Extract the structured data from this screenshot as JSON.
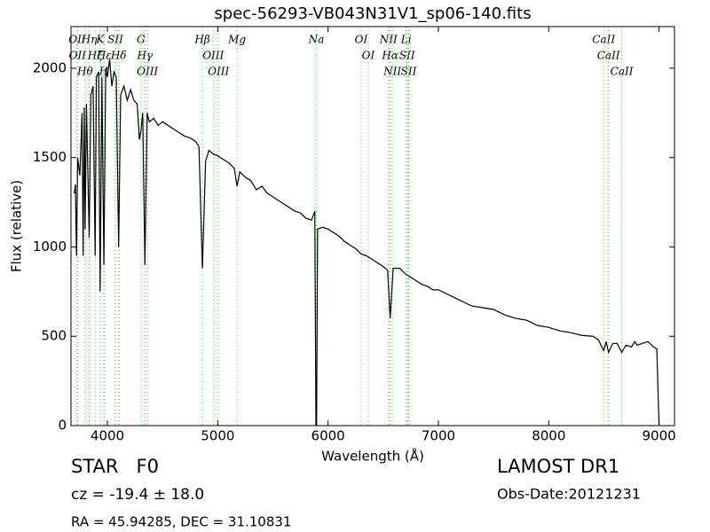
{
  "chart_data": {
    "type": "line",
    "title": "spec-56293-VB043N31V1_sp06-140.fits",
    "x_label": "Wavelength (Å)",
    "y_label": "Flux (relative)",
    "color": "#000000",
    "xlim": [
      3670,
      9140
    ],
    "ylim": [
      0,
      2233
    ],
    "xticks": [
      4000,
      5000,
      6000,
      7000,
      8000,
      9000
    ],
    "yticks": [
      0,
      500,
      1000,
      1500,
      2000
    ],
    "grid": false,
    "x": [
      3700,
      3710,
      3720,
      3730,
      3750,
      3770,
      3780,
      3790,
      3798,
      3810,
      3835,
      3850,
      3870,
      3889,
      3900,
      3920,
      3934,
      3950,
      3968,
      3985,
      4000,
      4020,
      4040,
      4060,
      4080,
      4102,
      4120,
      4150,
      4180,
      4210,
      4240,
      4270,
      4290,
      4304,
      4320,
      4340,
      4360,
      4380,
      4420,
      4460,
      4500,
      4550,
      4600,
      4650,
      4700,
      4750,
      4800,
      4830,
      4861,
      4890,
      4920,
      4960,
      5000,
      5050,
      5100,
      5150,
      5175,
      5200,
      5250,
      5300,
      5350,
      5400,
      5450,
      5500,
      5550,
      5600,
      5650,
      5700,
      5750,
      5800,
      5850,
      5880,
      5890,
      5896,
      5905,
      5950,
      6000,
      6050,
      6100,
      6150,
      6200,
      6250,
      6300,
      6350,
      6400,
      6450,
      6500,
      6540,
      6563,
      6590,
      6650,
      6700,
      6750,
      6800,
      6850,
      6900,
      6950,
      7000,
      7100,
      7200,
      7300,
      7400,
      7500,
      7600,
      7700,
      7800,
      7900,
      8000,
      8100,
      8200,
      8300,
      8400,
      8450,
      8498,
      8520,
      8542,
      8580,
      8620,
      8662,
      8700,
      8750,
      8780,
      8800,
      8850,
      8900,
      8950,
      8980,
      8990,
      9000
    ],
    "values": [
      1300,
      1350,
      950,
      1500,
      1400,
      1750,
      950,
      1780,
      1100,
      1800,
      1050,
      1850,
      1900,
      950,
      1950,
      1980,
      750,
      1950,
      900,
      2000,
      1950,
      2050,
      1900,
      1980,
      1950,
      1000,
      1850,
      1900,
      1820,
      1880,
      1820,
      1800,
      1600,
      1650,
      1750,
      900,
      1750,
      1700,
      1720,
      1680,
      1700,
      1680,
      1660,
      1640,
      1620,
      1610,
      1590,
      1560,
      880,
      1480,
      1540,
      1520,
      1510,
      1490,
      1470,
      1440,
      1340,
      1420,
      1390,
      1370,
      1320,
      1340,
      1300,
      1280,
      1260,
      1240,
      1220,
      1200,
      1190,
      1160,
      1150,
      1200,
      0,
      0,
      1100,
      1110,
      1100,
      1080,
      1060,
      1030,
      1010,
      990,
      960,
      950,
      930,
      910,
      890,
      870,
      600,
      880,
      880,
      850,
      830,
      810,
      790,
      780,
      760,
      760,
      730,
      700,
      670,
      660,
      650,
      620,
      600,
      590,
      560,
      550,
      530,
      520,
      505,
      500,
      480,
      420,
      470,
      410,
      460,
      460,
      410,
      450,
      440,
      470,
      450,
      460,
      470,
      440,
      430,
      200,
      0
    ],
    "line_color": "#5cb85c",
    "lines": [
      {
        "wavelength": 3726,
        "label": "OII"
      },
      {
        "wavelength": 3729,
        "label": "OII"
      },
      {
        "wavelength": 3798,
        "label": "Hθ"
      },
      {
        "wavelength": 3835,
        "label": "Hη"
      },
      {
        "wavelength": 3889,
        "label": "Hζ"
      },
      {
        "wavelength": 3934,
        "label": "K"
      },
      {
        "wavelength": 3968,
        "label": "H"
      },
      {
        "wavelength": 3970,
        "label": "Hε"
      },
      {
        "wavelength": 4072,
        "label": "SII"
      },
      {
        "wavelength": 4102,
        "label": "Hδ"
      },
      {
        "wavelength": 4304,
        "label": "G"
      },
      {
        "wavelength": 4340,
        "label": "Hγ"
      },
      {
        "wavelength": 4363,
        "label": "OIII"
      },
      {
        "wavelength": 4861,
        "label": "Hβ"
      },
      {
        "wavelength": 4959,
        "label": "OIII"
      },
      {
        "wavelength": 5007,
        "label": "OIII"
      },
      {
        "wavelength": 5175,
        "label": "Mg"
      },
      {
        "wavelength": 5894,
        "label": "Na"
      },
      {
        "wavelength": 6300,
        "label": "OI"
      },
      {
        "wavelength": 6364,
        "label": "OI"
      },
      {
        "wavelength": 6548,
        "label": "NII"
      },
      {
        "wavelength": 6563,
        "label": "Hα"
      },
      {
        "wavelength": 6583,
        "label": "NII"
      },
      {
        "wavelength": 6708,
        "label": "Li"
      },
      {
        "wavelength": 6717,
        "label": "SII"
      },
      {
        "wavelength": 6731,
        "label": "SII"
      },
      {
        "wavelength": 8498,
        "label": "CaII"
      },
      {
        "wavelength": 8542,
        "label": "CaII"
      },
      {
        "wavelength": 8662,
        "label": "CaII"
      }
    ]
  },
  "info": {
    "object": "STAR   F0",
    "cz": "cz = -19.4 ± 18.0",
    "coords": "RA = 45.94285, DEC = 31.10831",
    "survey": "LAMOST DR1",
    "obs_date": "Obs-Date:20121231"
  }
}
